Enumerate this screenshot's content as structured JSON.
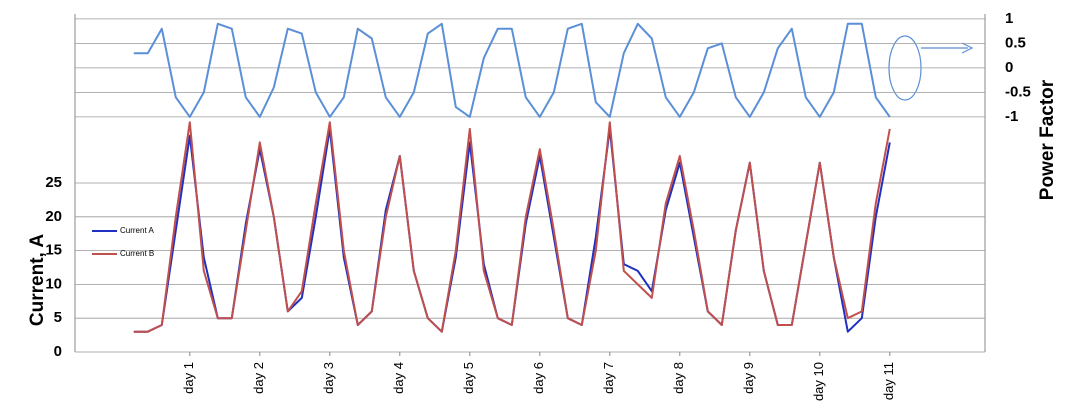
{
  "chart_data": {
    "type": "line",
    "y_label": "Current, A",
    "y2_label": "Power Factor",
    "x": [
      0.2,
      0.4,
      0.6,
      0.8,
      1.0,
      1.2,
      1.4,
      1.6,
      1.8,
      2.0,
      2.2,
      2.4,
      2.6,
      2.8,
      3.0,
      3.2,
      3.4,
      3.6,
      3.8,
      4.0,
      4.2,
      4.4,
      4.6,
      4.8,
      5.0,
      5.2,
      5.4,
      5.6,
      5.8,
      6.0,
      6.2,
      6.4,
      6.6,
      6.8,
      7.0,
      7.2,
      7.4,
      7.6,
      7.8,
      8.0,
      8.2,
      8.4,
      8.6,
      8.8,
      9.0,
      9.2,
      9.4,
      9.6,
      9.8,
      10.0,
      10.2,
      10.4,
      10.6,
      10.8,
      11.0
    ],
    "xlim": [
      -0.64,
      12.36
    ],
    "xticks": [
      {
        "value": 1,
        "label": "day 1"
      },
      {
        "value": 2,
        "label": "day 2"
      },
      {
        "value": 3,
        "label": "day 3"
      },
      {
        "value": 4,
        "label": "day 4"
      },
      {
        "value": 5,
        "label": "day 5"
      },
      {
        "value": 6,
        "label": "day 6"
      },
      {
        "value": 7,
        "label": "day 7"
      },
      {
        "value": 8,
        "label": "day 8"
      },
      {
        "value": 9,
        "label": "day 9"
      },
      {
        "value": 10,
        "label": "day 10"
      },
      {
        "value": 11,
        "label": "day 11"
      }
    ],
    "ylim": [
      0,
      50
    ],
    "yticks": [
      0,
      5,
      10,
      15,
      20,
      25
    ],
    "y2lim": [
      -5.8,
      1.1
    ],
    "y2ticks": [
      1,
      0.5,
      0,
      -0.5,
      -1
    ],
    "grid": true,
    "series": [
      {
        "name": "Current A",
        "color": "#2030c0",
        "values": [
          3,
          3,
          4,
          18,
          32,
          14,
          5,
          5,
          19,
          30,
          20,
          6,
          8,
          20,
          33,
          14,
          4,
          6,
          21,
          29,
          12,
          5,
          3,
          14,
          31,
          13,
          5,
          4,
          19,
          29,
          17,
          5,
          4,
          17,
          33,
          13,
          12,
          9,
          21,
          28,
          17,
          6,
          4,
          18,
          28,
          12,
          4,
          4,
          16,
          28,
          14,
          3,
          5,
          20,
          31
        ]
      },
      {
        "name": "Current B",
        "color": "#c0504d",
        "values": [
          3,
          3,
          4,
          20,
          34,
          12,
          5,
          5,
          18,
          31,
          20,
          6,
          9,
          22,
          34,
          15,
          4,
          6,
          20,
          29,
          12,
          5,
          3,
          15,
          33,
          12,
          5,
          4,
          20,
          30,
          18,
          5,
          4,
          15,
          34,
          12,
          10,
          8,
          22,
          29,
          18,
          6,
          4,
          18,
          28,
          12,
          4,
          4,
          16,
          28,
          14,
          5,
          6,
          22,
          33
        ]
      },
      {
        "color": "#5b8fd6",
        "axis": "y2",
        "values": [
          0.3,
          0.3,
          0.8,
          -0.6,
          -1,
          -0.5,
          0.9,
          0.8,
          -0.6,
          -1,
          -0.4,
          0.8,
          0.7,
          -0.5,
          -1,
          -0.6,
          0.8,
          0.6,
          -0.6,
          -1,
          -0.5,
          0.7,
          0.9,
          -0.8,
          -1,
          0.2,
          0.8,
          0.8,
          -0.6,
          -1,
          -0.5,
          0.8,
          0.9,
          -0.7,
          -1,
          0.3,
          0.9,
          0.6,
          -0.6,
          -1,
          -0.5,
          0.4,
          0.5,
          -0.6,
          -1,
          -0.5,
          0.4,
          0.8,
          -0.6,
          -1,
          -0.5,
          0.9,
          0.9,
          -0.6,
          -1
        ]
      }
    ]
  }
}
